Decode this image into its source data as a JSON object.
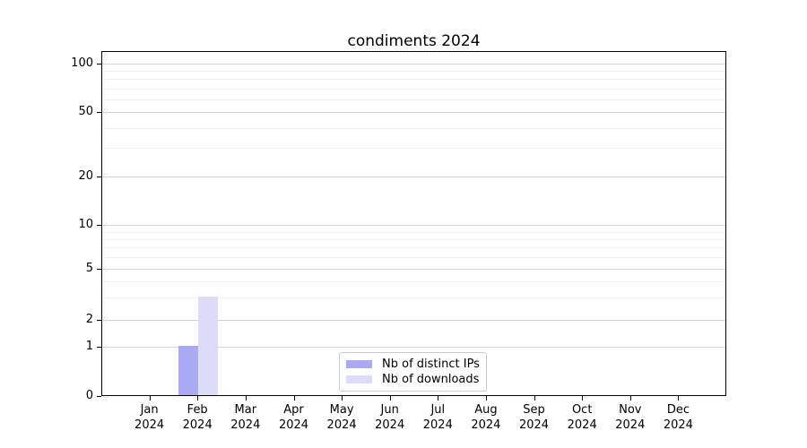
{
  "chart_data": {
    "type": "bar",
    "title": "condiments 2024",
    "categories": [
      {
        "month": "Jan",
        "year": "2024"
      },
      {
        "month": "Feb",
        "year": "2024"
      },
      {
        "month": "Mar",
        "year": "2024"
      },
      {
        "month": "Apr",
        "year": "2024"
      },
      {
        "month": "May",
        "year": "2024"
      },
      {
        "month": "Jun",
        "year": "2024"
      },
      {
        "month": "Jul",
        "year": "2024"
      },
      {
        "month": "Aug",
        "year": "2024"
      },
      {
        "month": "Sep",
        "year": "2024"
      },
      {
        "month": "Oct",
        "year": "2024"
      },
      {
        "month": "Nov",
        "year": "2024"
      },
      {
        "month": "Dec",
        "year": "2024"
      }
    ],
    "series": [
      {
        "name": "Nb of distinct IPs",
        "color": "#a9a9f4",
        "values": [
          0,
          1,
          0,
          0,
          0,
          0,
          0,
          0,
          0,
          0,
          0,
          0
        ]
      },
      {
        "name": "Nb of downloads",
        "color": "#dcdcf8",
        "values": [
          0,
          3,
          0,
          0,
          0,
          0,
          0,
          0,
          0,
          0,
          0,
          0
        ]
      }
    ],
    "y_axis": {
      "scale": "log-like (symlog/asinh)",
      "major_ticks": [
        0,
        1,
        2,
        5,
        10,
        20,
        50,
        100
      ],
      "minor_ticks": [
        3,
        4,
        6,
        7,
        8,
        9,
        30,
        40,
        60,
        70,
        80,
        90
      ],
      "range": [
        0,
        100
      ]
    },
    "grid": true,
    "legend_position": "lower center inside"
  }
}
